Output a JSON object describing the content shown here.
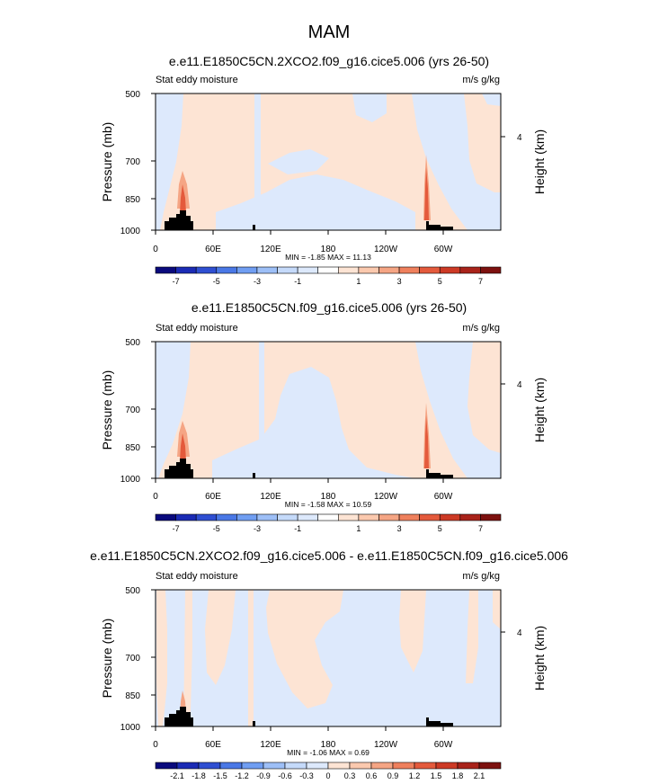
{
  "figure": {
    "title": "MAM"
  },
  "colorbar_palette": {
    "neg": [
      "#0a0a7d",
      "#1b2bb5",
      "#2f4fd2",
      "#4a78e6",
      "#709ef2",
      "#9dbff7",
      "#c5dafa",
      "#dde9fc"
    ],
    "pos": [
      "#fde4d4",
      "#fbc9ae",
      "#f5a584",
      "#ef805d",
      "#e45a3c",
      "#cd3a25",
      "#a9231a",
      "#7d110f"
    ],
    "topo": "#000000",
    "frame": "#000000"
  },
  "chart_data": [
    {
      "type": "heatmap",
      "title": "e.e11.E1850C5CN.2XCO2.f09_g16.cice5.006 (yrs 26-50)",
      "left_label": "Stat eddy moisture",
      "right_label": "m/s g/kg",
      "ylabel": "Pressure (mb)",
      "ylabel_right": "Height (km)",
      "x_ticks": [
        "0",
        "60E",
        "120E",
        "180",
        "120W",
        "60W"
      ],
      "y_ticks": [
        "500",
        "700",
        "850",
        "1000"
      ],
      "right_ticks": [
        "4"
      ],
      "stats": "MIN = -1.85  MAX = 11.13",
      "colorbar_labels": [
        "-7",
        "-5",
        "-3",
        "-1",
        "1",
        "3",
        "5",
        "7"
      ]
    },
    {
      "type": "heatmap",
      "title": "e.e11.E1850C5CN.f09_g16.cice5.006 (yrs 26-50)",
      "left_label": "Stat eddy moisture",
      "right_label": "m/s g/kg",
      "ylabel": "Pressure (mb)",
      "ylabel_right": "Height (km)",
      "x_ticks": [
        "0",
        "60E",
        "120E",
        "180",
        "120W",
        "60W"
      ],
      "y_ticks": [
        "500",
        "700",
        "850",
        "1000"
      ],
      "right_ticks": [
        "4"
      ],
      "stats": "MIN = -1.58  MAX = 10.59",
      "colorbar_labels": [
        "-7",
        "-5",
        "-3",
        "-1",
        "1",
        "3",
        "5",
        "7"
      ]
    },
    {
      "type": "heatmap",
      "title": "e.e11.E1850C5CN.2XCO2.f09_g16.cice5.006 - e.e11.E1850C5CN.f09_g16.cice5.006",
      "left_label": "Stat eddy moisture",
      "right_label": "m/s g/kg",
      "ylabel": "Pressure (mb)",
      "ylabel_right": "Height (km)",
      "x_ticks": [
        "0",
        "60E",
        "120E",
        "180",
        "120W",
        "60W"
      ],
      "y_ticks": [
        "500",
        "700",
        "850",
        "1000"
      ],
      "right_ticks": [
        "4"
      ],
      "stats": "MIN = -1.06  MAX =  0.69",
      "colorbar_labels": [
        "-2.1",
        "-1.8",
        "-1.5",
        "-1.2",
        "-0.9",
        "-0.6",
        "-0.3",
        "0",
        "0.3",
        "0.6",
        "0.9",
        "1.2",
        "1.5",
        "1.8",
        "2.1"
      ]
    }
  ]
}
